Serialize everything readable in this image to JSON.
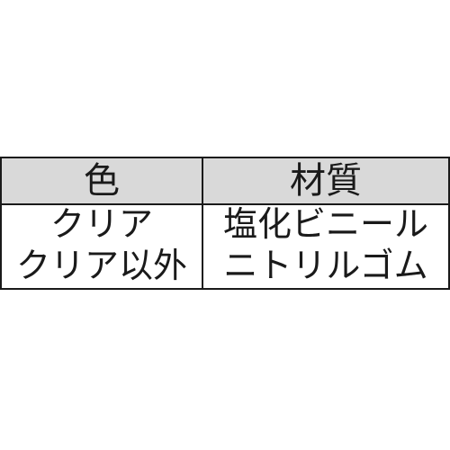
{
  "table": {
    "border_color": "#1a1a1a",
    "header_bg": "#d9d9d9",
    "header_text_color": "#1a1a1a",
    "body_bg": "#ffffff",
    "body_text_color": "#1a1a1a",
    "columns": [
      "色",
      "材質"
    ],
    "rows": [
      [
        "クリア",
        "塩化ビニール"
      ],
      [
        "クリア以外",
        "ニトリルゴム"
      ]
    ]
  }
}
